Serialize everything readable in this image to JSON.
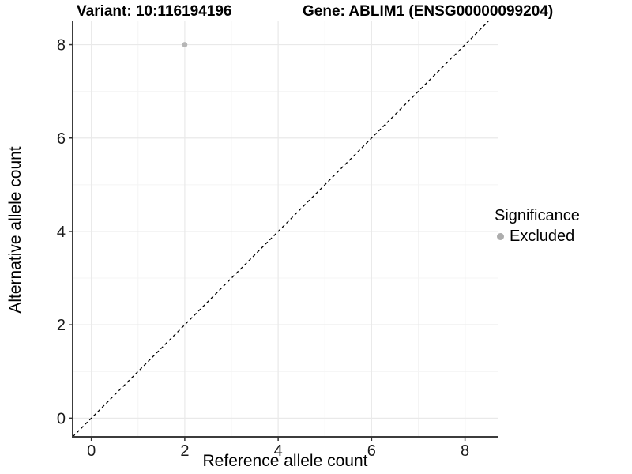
{
  "chart_data": {
    "type": "scatter",
    "title_left": "Variant: 10:116194196",
    "title_right": "Gene: ABLIM1 (ENSG00000099204)",
    "xlabel": "Reference allele count",
    "ylabel": "Alternative allele count",
    "xlim": [
      -0.4,
      8.7
    ],
    "ylim": [
      -0.4,
      8.5
    ],
    "xticks": [
      0,
      2,
      4,
      6,
      8
    ],
    "yticks": [
      0,
      2,
      4,
      6,
      8
    ],
    "minor_xticks": [
      1,
      3,
      5,
      7
    ],
    "minor_yticks": [
      1,
      3,
      5,
      7
    ],
    "grid": "major+minor",
    "points": [
      {
        "x": 2,
        "y": 8,
        "series": "Excluded",
        "color": "#b6b6b6"
      }
    ],
    "reference_line": {
      "kind": "identity",
      "slope": 1,
      "intercept": 0,
      "style": "dashed",
      "color": "#000000"
    },
    "legend": {
      "title": "Significance",
      "position": "right",
      "entries": [
        {
          "label": "Excluded",
          "color": "#adadad"
        }
      ]
    },
    "colors": {
      "background": "#ffffff",
      "grid_major": "#e9e9e9",
      "grid_minor": "#f4f4f4",
      "axis_line": "#3c3c3c",
      "tick_mark": "#333333",
      "tick_label": "#1a1a1a"
    }
  }
}
